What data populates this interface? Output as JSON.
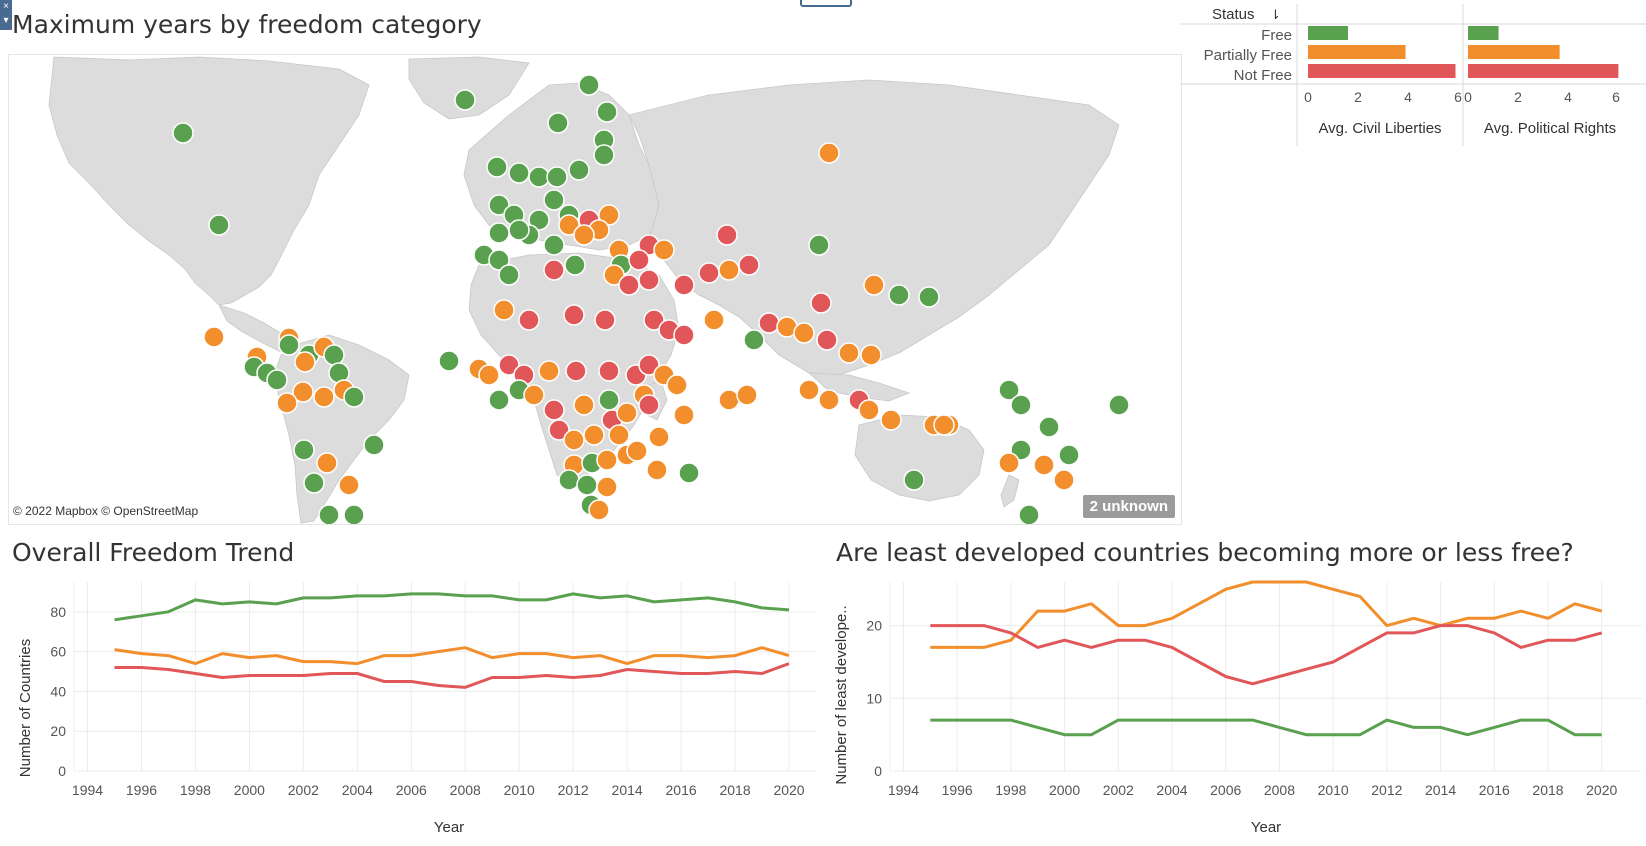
{
  "colors": {
    "free": "#59a14f",
    "partially_free": "#f28e2b",
    "not_free": "#e15759",
    "land": "#dcdcdc",
    "grid": "#ececec",
    "axis_text": "#555555"
  },
  "map": {
    "title": "Maximum years by freedom category",
    "attribution": "© 2022 Mapbox © OpenStreetMap",
    "unknown_label": "2 unknown"
  },
  "status_panel": {
    "header": "Status",
    "sort_icon": "sort-descending-icon",
    "rows": [
      "Free",
      "Partially Free",
      "Not Free"
    ],
    "ticks": [
      "0",
      "2",
      "4",
      "6"
    ]
  },
  "chart_data": [
    {
      "type": "bar",
      "title": "",
      "xlabel": "Avg. Civil Liberties",
      "categories": [
        "Free",
        "Partially Free",
        "Not Free"
      ],
      "values": [
        1.6,
        3.9,
        5.9
      ],
      "xlim": [
        0,
        7
      ]
    },
    {
      "type": "bar",
      "title": "",
      "xlabel": "Avg. Political Rights",
      "categories": [
        "Free",
        "Partially Free",
        "Not Free"
      ],
      "values": [
        1.3,
        3.9,
        6.4
      ],
      "xlim": [
        0,
        7
      ]
    },
    {
      "type": "line",
      "title": "Overall Freedom Trend",
      "xlabel": "Year",
      "ylabel": "Number of Countries",
      "x": [
        1995,
        1996,
        1997,
        1998,
        1999,
        2000,
        2001,
        2002,
        2003,
        2004,
        2005,
        2006,
        2007,
        2008,
        2009,
        2010,
        2011,
        2012,
        2013,
        2014,
        2015,
        2016,
        2017,
        2018,
        2019,
        2020
      ],
      "xticks": [
        1994,
        1996,
        1998,
        2000,
        2002,
        2004,
        2006,
        2008,
        2010,
        2012,
        2014,
        2016,
        2018,
        2020
      ],
      "xlim": [
        1993.5,
        2021
      ],
      "yticks": [
        0,
        20,
        40,
        60,
        80
      ],
      "ylim": [
        0,
        95
      ],
      "grid": true,
      "series": [
        {
          "key": "free",
          "values": [
            76,
            78,
            80,
            86,
            84,
            85,
            84,
            87,
            87,
            88,
            88,
            89,
            89,
            88,
            88,
            86,
            86,
            89,
            87,
            88,
            85,
            86,
            87,
            85,
            82,
            81
          ]
        },
        {
          "key": "partially_free",
          "values": [
            61,
            59,
            58,
            54,
            59,
            57,
            58,
            55,
            55,
            54,
            58,
            58,
            60,
            62,
            57,
            59,
            59,
            57,
            58,
            54,
            58,
            58,
            57,
            58,
            62,
            58
          ]
        },
        {
          "key": "not_free",
          "values": [
            52,
            52,
            51,
            49,
            47,
            48,
            48,
            48,
            49,
            49,
            45,
            45,
            43,
            42,
            47,
            47,
            48,
            47,
            48,
            51,
            50,
            49,
            49,
            50,
            49,
            54
          ]
        }
      ]
    },
    {
      "type": "line",
      "title": "Are least developed countries becoming more or less free?",
      "xlabel": "Year",
      "ylabel": "Number of least develope..",
      "x": [
        1995,
        1996,
        1997,
        1998,
        1999,
        2000,
        2001,
        2002,
        2003,
        2004,
        2005,
        2006,
        2007,
        2008,
        2009,
        2010,
        2011,
        2012,
        2013,
        2014,
        2015,
        2016,
        2017,
        2018,
        2019,
        2020
      ],
      "xticks": [
        1994,
        1996,
        1998,
        2000,
        2002,
        2004,
        2006,
        2008,
        2010,
        2012,
        2014,
        2016,
        2018,
        2020
      ],
      "xlim": [
        1993.5,
        2021.5
      ],
      "yticks": [
        0,
        10,
        20
      ],
      "ylim": [
        0,
        26
      ],
      "grid": true,
      "series": [
        {
          "key": "partially_free",
          "values": [
            17,
            17,
            17,
            18,
            22,
            22,
            23,
            20,
            20,
            21,
            23,
            25,
            26,
            26,
            26,
            25,
            24,
            20,
            21,
            20,
            21,
            21,
            22,
            21,
            23,
            22
          ]
        },
        {
          "key": "not_free",
          "values": [
            20,
            20,
            20,
            19,
            17,
            18,
            17,
            18,
            18,
            17,
            15,
            13,
            12,
            13,
            14,
            15,
            17,
            19,
            19,
            20,
            20,
            19,
            17,
            18,
            18,
            19
          ]
        },
        {
          "key": "free",
          "values": [
            7,
            7,
            7,
            7,
            6,
            5,
            5,
            7,
            7,
            7,
            7,
            7,
            7,
            6,
            5,
            5,
            5,
            7,
            6,
            6,
            5,
            6,
            7,
            7,
            5,
            5
          ]
        }
      ]
    }
  ]
}
